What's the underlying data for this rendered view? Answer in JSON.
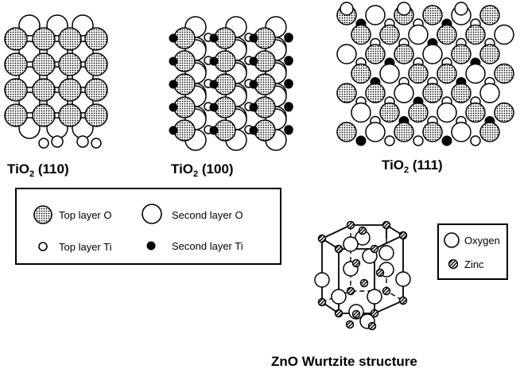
{
  "captions": {
    "tio2_110": {
      "base": "TiO",
      "sub": "2",
      "suffix": " (110)"
    },
    "tio2_100": {
      "base": "TiO",
      "sub": "2",
      "suffix": " (100)"
    },
    "tio2_111": {
      "base": "TiO",
      "sub": "2",
      "suffix": " (111)"
    },
    "zno": "ZnO Wurtzite structure"
  },
  "legend_tio2": {
    "top_o": "Top layer O",
    "second_o": "Second  layer O",
    "top_ti": "Top layer Ti",
    "second_ti": "Second layer Ti"
  },
  "legend_zno": {
    "oxygen": "Oxygen",
    "zinc": "Zinc"
  },
  "colors": {
    "stroke": "#000000",
    "hollow": "#ffffff",
    "dotted_fill": "#9a9a9a"
  }
}
